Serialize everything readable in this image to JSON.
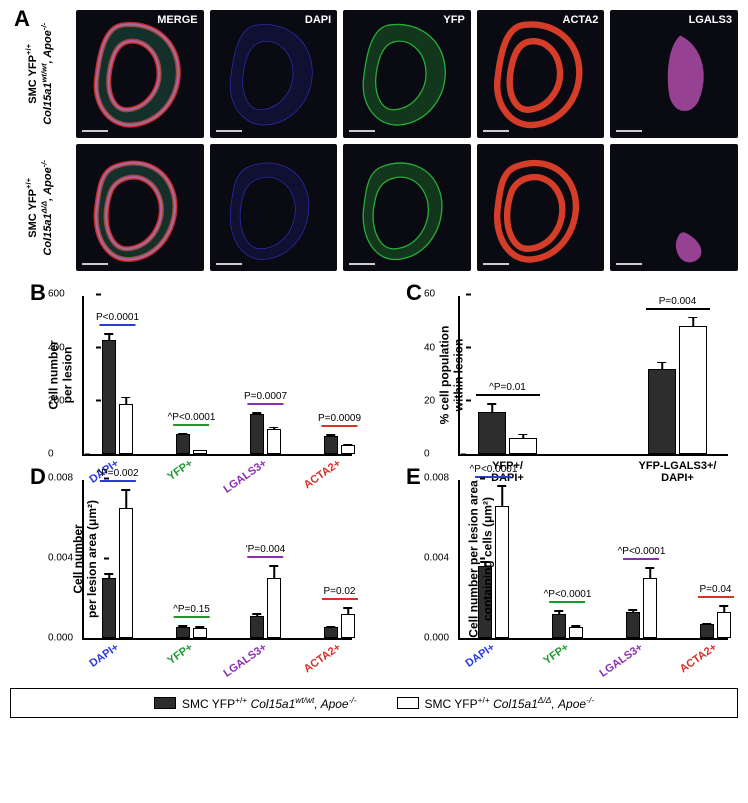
{
  "panelA": {
    "label": "A",
    "rowLabels": [
      {
        "line1": "SMC YFP<sup>+/+</sup>",
        "line2": "Col15a1<sup>wt/wt</sup>, Apoe<sup>-/-</sup>"
      },
      {
        "line1": "SMC YFP<sup>+/+</sup>",
        "line2": "Col15a1<sup>Δ/Δ</sup>, Apoe<sup>-/-</sup>"
      }
    ],
    "channels": [
      "MERGE",
      "DAPI",
      "YFP",
      "ACTA2",
      "LGALS3"
    ],
    "channelColors": {
      "MERGE": "multi",
      "DAPI": "#3a3af2",
      "YFP": "#2ecc40",
      "ACTA2": "#e2402a",
      "LGALS3": "#d258c9"
    }
  },
  "panelB": {
    "label": "B",
    "ylabel": "Cell number\nper lesion",
    "ymax": 600,
    "ytick_step": 200,
    "categories": [
      {
        "name": "DAPI+",
        "color": "#2a3bd6",
        "wt": 430,
        "ko": 190,
        "wt_err": 28,
        "ko_err": 30,
        "p": "P<0.0001"
      },
      {
        "name": "YFP+",
        "color": "#1a9930",
        "wt": 75,
        "ko": 15,
        "wt_err": 10,
        "ko_err": 5,
        "p": "^P<0.0001"
      },
      {
        "name": "LGALS3+",
        "color": "#8a2fb0",
        "wt": 150,
        "ko": 95,
        "wt_err": 12,
        "ko_err": 12,
        "p": "P=0.0007"
      },
      {
        "name": "ACTA2+",
        "color": "#d9302a",
        "wt": 70,
        "ko": 35,
        "wt_err": 8,
        "ko_err": 8,
        "p": "P=0.0009"
      }
    ]
  },
  "panelC": {
    "label": "C",
    "ylabel": "% cell population\nwithin lesion",
    "ymax": 60,
    "ytick_step": 20,
    "categories": [
      {
        "name": "YFP+/\nDAPI+",
        "color": "#000",
        "wt": 16,
        "ko": 6,
        "wt_err": 3.5,
        "ko_err": 2,
        "p": "^P=0.01"
      },
      {
        "name": "YFP-LGALS3+/\nDAPI+",
        "color": "#000",
        "wt": 32,
        "ko": 48,
        "wt_err": 3,
        "ko_err": 4,
        "p": "P=0.004"
      }
    ]
  },
  "panelD": {
    "label": "D",
    "ylabel": "Cell number\nper lesion area (μm²)",
    "ymax": 0.008,
    "ytick_step": 0.004,
    "categories": [
      {
        "name": "DAPI+",
        "color": "#2a3bd6",
        "wt": 0.003,
        "ko": 0.0065,
        "wt_err": 0.0003,
        "ko_err": 0.001,
        "p": "^P=0.002"
      },
      {
        "name": "YFP+",
        "color": "#1a9930",
        "wt": 0.00055,
        "ko": 0.0005,
        "wt_err": 0.00015,
        "ko_err": 0.00015,
        "p": "^P=0.15"
      },
      {
        "name": "LGALS3+",
        "color": "#8a2fb0",
        "wt": 0.0011,
        "ko": 0.003,
        "wt_err": 0.0002,
        "ko_err": 0.0007,
        "p": "'P=0.004"
      },
      {
        "name": "ACTA2+",
        "color": "#d9302a",
        "wt": 0.00055,
        "ko": 0.0012,
        "wt_err": 0.0001,
        "ko_err": 0.0004,
        "p": "P=0.02"
      }
    ]
  },
  "panelE": {
    "label": "E",
    "ylabel": "Cell number per lesion area\ncontaining cells (μm²)",
    "ymax": 0.008,
    "ytick_step": 0.004,
    "categories": [
      {
        "name": "DAPI+",
        "color": "#2a3bd6",
        "wt": 0.0036,
        "ko": 0.0066,
        "wt_err": 0.0003,
        "ko_err": 0.0011,
        "p": "^P<0.0001"
      },
      {
        "name": "YFP+",
        "color": "#1a9930",
        "wt": 0.0012,
        "ko": 0.00055,
        "wt_err": 0.00025,
        "ko_err": 0.00015,
        "p": "^P<0.0001"
      },
      {
        "name": "LGALS3+",
        "color": "#8a2fb0",
        "wt": 0.0013,
        "ko": 0.003,
        "wt_err": 0.0002,
        "ko_err": 0.0006,
        "p": "^P<0.0001"
      },
      {
        "name": "ACTA2+",
        "color": "#d9302a",
        "wt": 0.0007,
        "ko": 0.0013,
        "wt_err": 0.0001,
        "ko_err": 0.0004,
        "p": "P=0.04"
      }
    ]
  },
  "legend": {
    "items": [
      {
        "fill": "#2d2d2d",
        "html": "SMC YFP<sup>+/+</sup> <span class='gene'>Col15a1<sup>wt/wt</sup>, Apoe<sup>-/-</sup></span>"
      },
      {
        "fill": "#fff",
        "html": "SMC YFP<sup>+/+</sup> <span class='gene'>Col15a1<sup>Δ/Δ</sup>, Apoe<sup>-/-</sup></span>"
      }
    ]
  }
}
